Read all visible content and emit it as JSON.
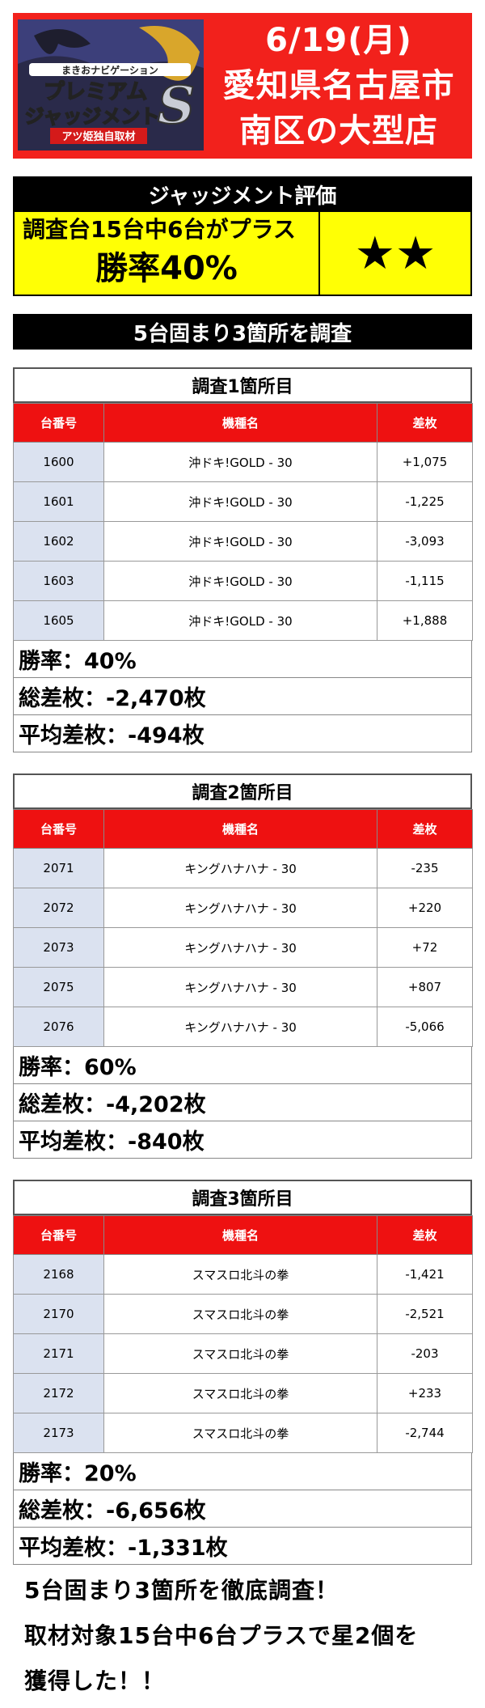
{
  "header": {
    "logo": {
      "small_text": "まきおナビゲーション",
      "line1": "プレミアム",
      "line2": "ジャッジメント",
      "big_letter": "S",
      "banner": "アツ姫独自取材"
    },
    "date": "6/19(月)",
    "location_line1": "愛知県名古屋市",
    "location_line2": "南区の大型店"
  },
  "evaluation": {
    "heading": "ジャッジメント評価",
    "summary": "調査台15台中6台がプラス",
    "win_rate": "勝率40%",
    "stars": "★★"
  },
  "section_heading": "5台固まり3箇所を調査",
  "columns": {
    "number": "台番号",
    "machine": "機種名",
    "diff": "差枚"
  },
  "surveys": [
    {
      "title": "調査1箇所目",
      "rows": [
        {
          "number": "1600",
          "machine": "沖ドキ!GOLD - 30",
          "diff": "+1,075"
        },
        {
          "number": "1601",
          "machine": "沖ドキ!GOLD - 30",
          "diff": "-1,225"
        },
        {
          "number": "1602",
          "machine": "沖ドキ!GOLD - 30",
          "diff": "-3,093"
        },
        {
          "number": "1603",
          "machine": "沖ドキ!GOLD - 30",
          "diff": "-1,115"
        },
        {
          "number": "1605",
          "machine": "沖ドキ!GOLD - 30",
          "diff": "+1,888"
        }
      ],
      "win_rate": "勝率：40%",
      "total": "総差枚：-2,470枚",
      "average": "平均差枚：-494枚"
    },
    {
      "title": "調査2箇所目",
      "rows": [
        {
          "number": "2071",
          "machine": "キングハナハナ - 30",
          "diff": "-235"
        },
        {
          "number": "2072",
          "machine": "キングハナハナ - 30",
          "diff": "+220"
        },
        {
          "number": "2073",
          "machine": "キングハナハナ - 30",
          "diff": "+72"
        },
        {
          "number": "2075",
          "machine": "キングハナハナ - 30",
          "diff": "+807"
        },
        {
          "number": "2076",
          "machine": "キングハナハナ - 30",
          "diff": "-5,066"
        }
      ],
      "win_rate": "勝率：60%",
      "total": "総差枚：-4,202枚",
      "average": "平均差枚：-840枚"
    },
    {
      "title": "調査3箇所目",
      "rows": [
        {
          "number": "2168",
          "machine": "スマスロ北斗の拳",
          "diff": "-1,421"
        },
        {
          "number": "2170",
          "machine": "スマスロ北斗の拳",
          "diff": "-2,521"
        },
        {
          "number": "2171",
          "machine": "スマスロ北斗の拳",
          "diff": "-203"
        },
        {
          "number": "2172",
          "machine": "スマスロ北斗の拳",
          "diff": "+233"
        },
        {
          "number": "2173",
          "machine": "スマスロ北斗の拳",
          "diff": "-2,744"
        }
      ],
      "win_rate": "勝率：20%",
      "total": "総差枚：-6,656枚",
      "average": "平均差枚：-1,331枚"
    }
  ],
  "footer": {
    "line1": "5台固まり3箇所を徹底調査！",
    "line2": "取材対象15台中6台プラスで星2個を",
    "line3": "獲得した！！"
  }
}
